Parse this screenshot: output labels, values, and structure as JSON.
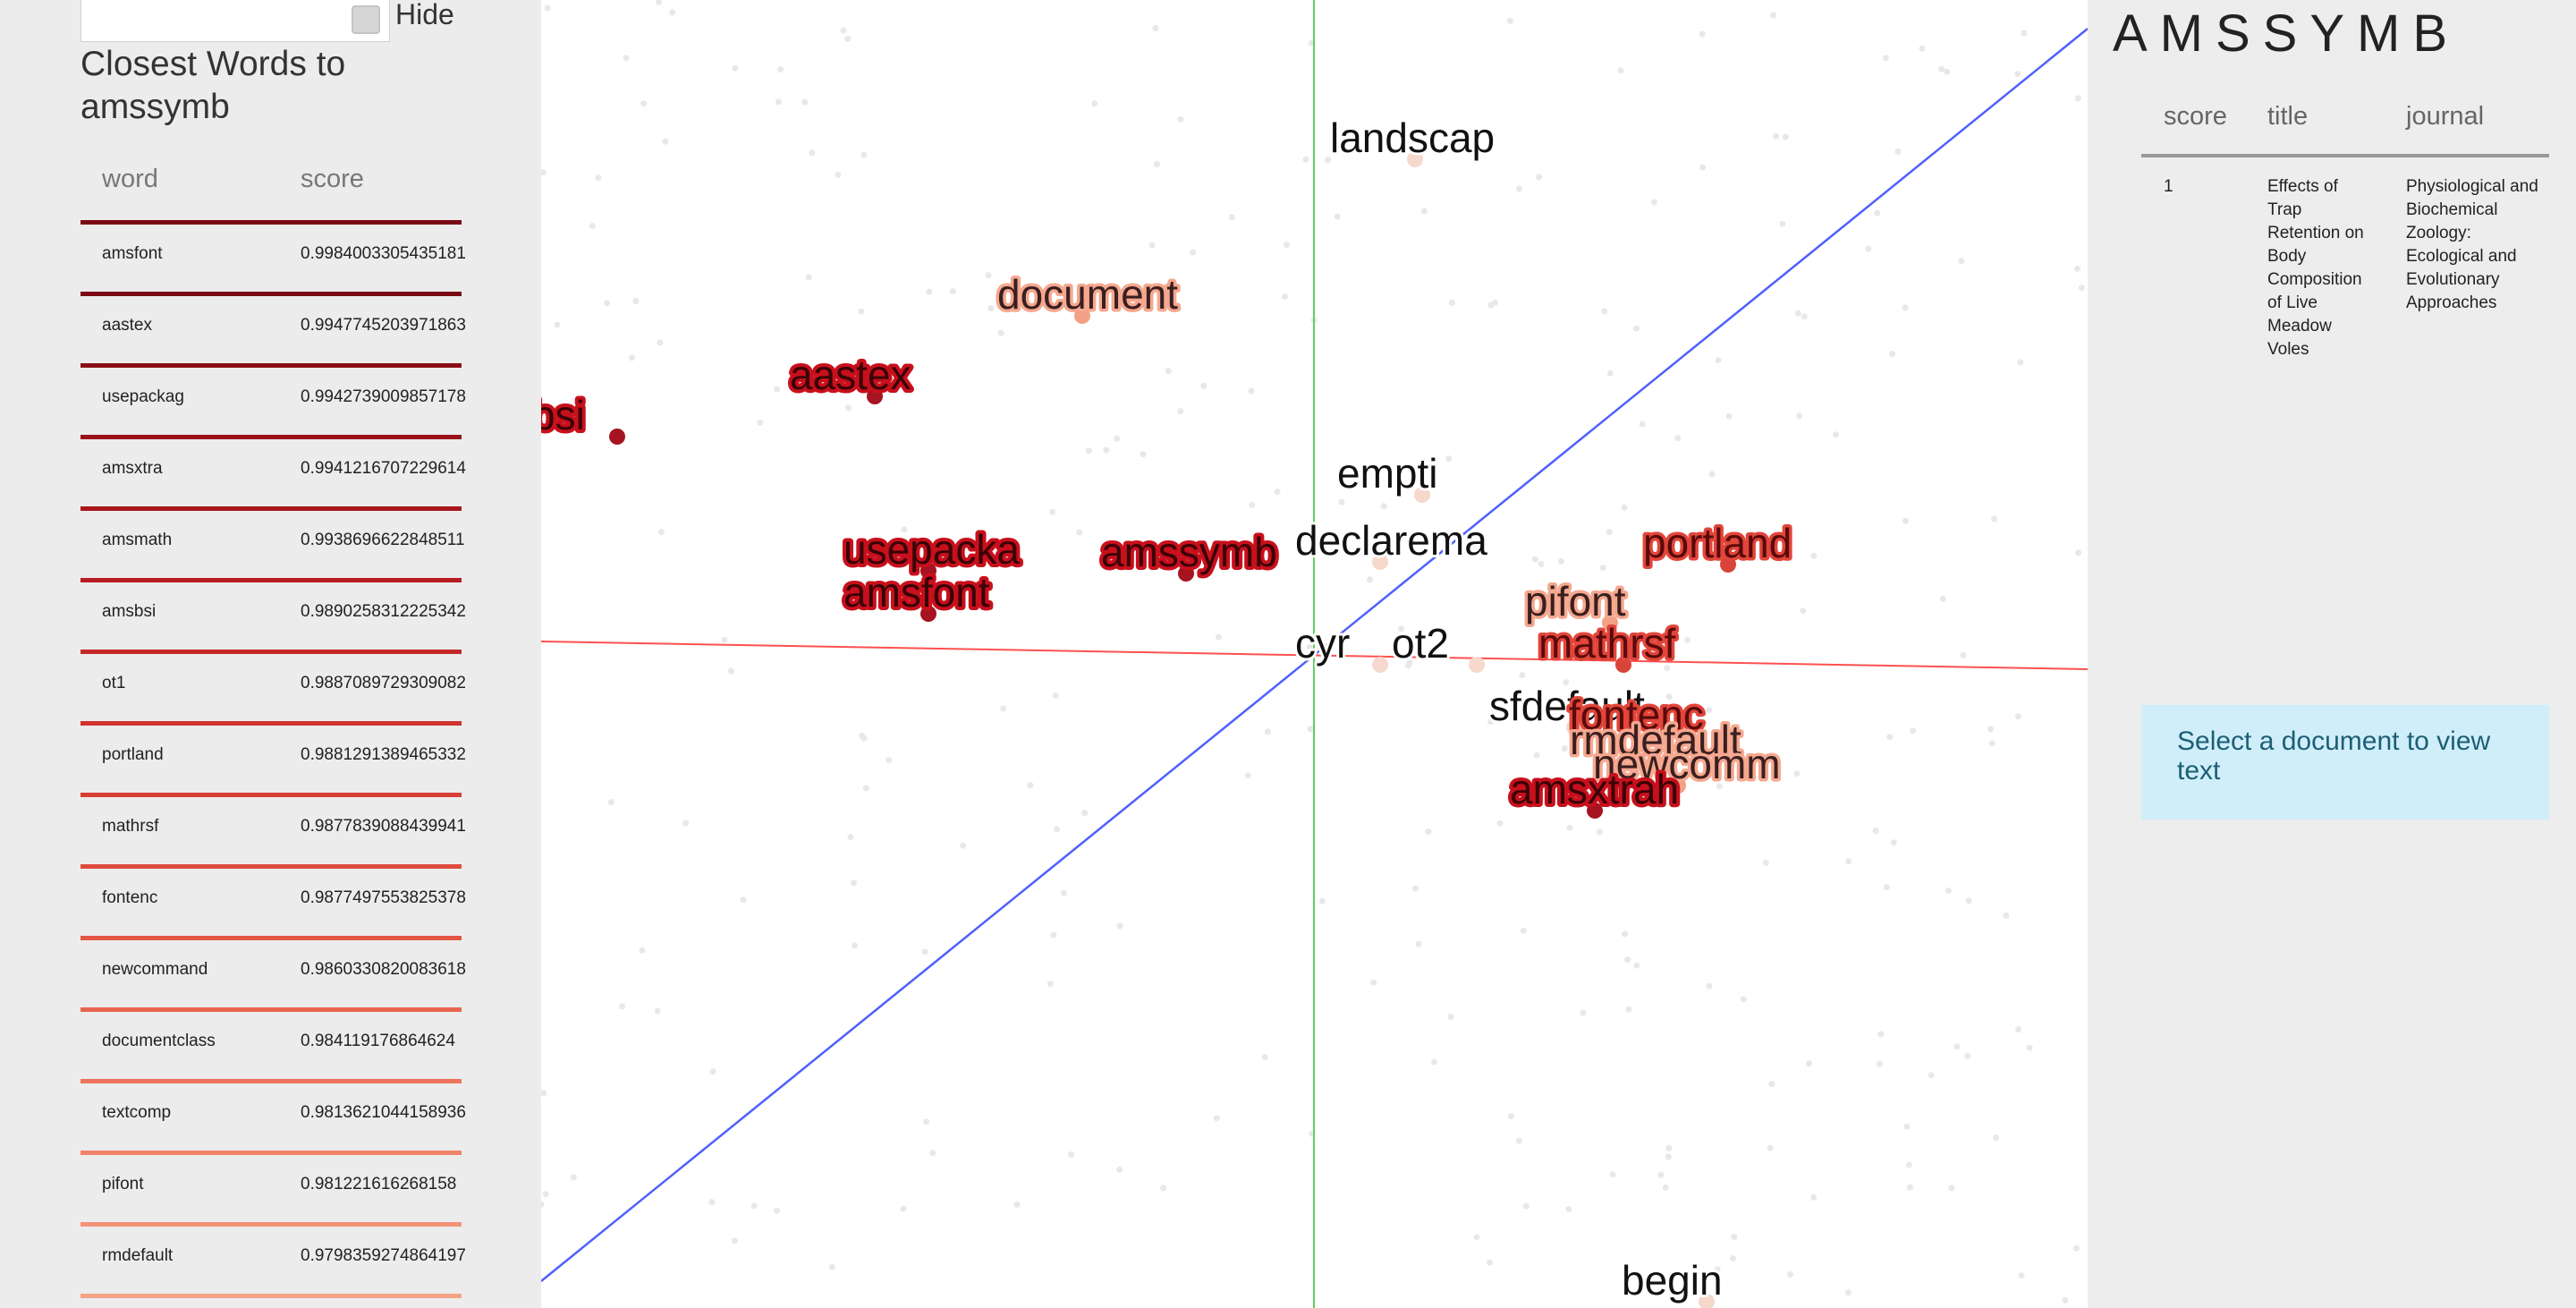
{
  "search": {
    "value": "",
    "hide_label": "Hide"
  },
  "closest": {
    "title": "Closest Words to amssymb",
    "columns": {
      "word": "word",
      "score": "score"
    },
    "rows": [
      {
        "word": "amsfont",
        "score": "0.9984003305435181",
        "color": "#7a0a14"
      },
      {
        "word": "aastex",
        "score": "0.9947745203971863",
        "color": "#8a0e16"
      },
      {
        "word": "usepackag",
        "score": "0.9942739009857178",
        "color": "#9a1218"
      },
      {
        "word": "amsxtra",
        "score": "0.9941216707229614",
        "color": "#a8161c"
      },
      {
        "word": "amsmath",
        "score": "0.9938696622848511",
        "color": "#b81d22"
      },
      {
        "word": "amsbsi",
        "score": "0.9890258312225342",
        "color": "#c62828"
      },
      {
        "word": "ot1",
        "score": "0.9887089729309082",
        "color": "#d0332e"
      },
      {
        "word": "portland",
        "score": "0.9881291389465332",
        "color": "#d83f35"
      },
      {
        "word": "mathrsf",
        "score": "0.9877839088439941",
        "color": "#de4a3c"
      },
      {
        "word": "fontenc",
        "score": "0.9877497553825378",
        "color": "#e45745"
      },
      {
        "word": "newcommand",
        "score": "0.9860330820083618",
        "color": "#e8654f"
      },
      {
        "word": "documentclass",
        "score": "0.984119176864624",
        "color": "#ed745b"
      },
      {
        "word": "textcomp",
        "score": "0.9813621044158936",
        "color": "#f08368"
      },
      {
        "word": "pifont",
        "score": "0.981221616268158",
        "color": "#f39377"
      },
      {
        "word": "rmdefault",
        "score": "0.9798359274864197",
        "color": "#f5a386"
      }
    ]
  },
  "plot": {
    "labels": [
      {
        "text": "landscap",
        "style": "plain"
      },
      {
        "text": "document",
        "style": "light"
      },
      {
        "text": "aastex",
        "style": "strong"
      },
      {
        "text": "bsi",
        "style": "strong"
      },
      {
        "text": "empti",
        "style": "plain"
      },
      {
        "text": "usepacka",
        "style": "strong"
      },
      {
        "text": "amsfont",
        "style": "strong"
      },
      {
        "text": "amssymb",
        "style": "strong"
      },
      {
        "text": "declarema",
        "style": "plain"
      },
      {
        "text": "portland",
        "style": "medium"
      },
      {
        "text": "pifont",
        "style": "light"
      },
      {
        "text": "mathrsf",
        "style": "medium"
      },
      {
        "text": "cyr",
        "style": "plain"
      },
      {
        "text": "ot2",
        "style": "plain"
      },
      {
        "text": "sfdefault",
        "style": "plain"
      },
      {
        "text": "fontenc",
        "style": "medium"
      },
      {
        "text": "rmdefault",
        "style": "light"
      },
      {
        "text": "newcomm",
        "style": "light"
      },
      {
        "text": "amsxtrah",
        "style": "strong"
      },
      {
        "text": "begin",
        "style": "plain"
      }
    ],
    "axis_colors": {
      "x": "#ff5050",
      "y": "#60d060",
      "z": "#5060ff"
    }
  },
  "detail": {
    "word": "AMSSYMB",
    "columns": {
      "score": "score",
      "title": "title",
      "journal": "journal"
    },
    "rows": [
      {
        "score": "1",
        "title": "Effects of Trap Retention on Body Composition of Live Meadow Voles",
        "journal": "Physiological and Biochemical Zoology: Ecological and Evolutionary Approaches"
      }
    ],
    "select_message": "Select a document to view text"
  }
}
